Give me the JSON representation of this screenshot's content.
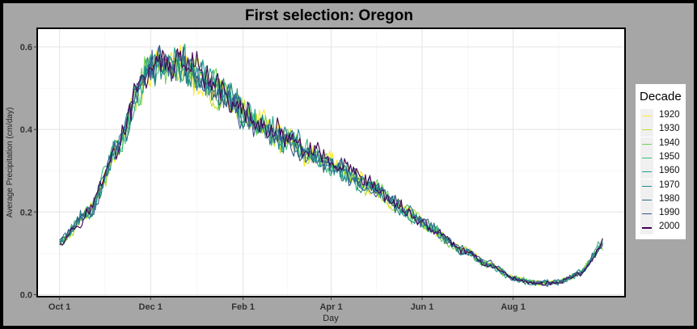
{
  "chart_data": {
    "type": "line",
    "title": "First selection: Oregon",
    "xlabel": "Day",
    "ylabel": "Average Precipitation (cm/day)",
    "x_ticks": [
      "Oct 1",
      "Dec 1",
      "Feb 1",
      "Apr 1",
      "Jun 1",
      "Aug 1"
    ],
    "x_tick_days": [
      1,
      62,
      124,
      183,
      244,
      305
    ],
    "xlim": [
      -14,
      380
    ],
    "y_ticks": [
      "0.0",
      "0.2",
      "0.4",
      "0.6"
    ],
    "y_tick_values": [
      0.0,
      0.2,
      0.4,
      0.6
    ],
    "ylim": [
      -0.005,
      0.645
    ],
    "grid": true,
    "legend_title": "Decade",
    "legend_position": "right",
    "x_unit": "day of water year (Oct 1 = 1)",
    "series": [
      {
        "name": "1920",
        "color": "#FDE725",
        "seed": 11
      },
      {
        "name": "1930",
        "color": "#B8DE29",
        "seed": 23
      },
      {
        "name": "1940",
        "color": "#73D055",
        "seed": 37
      },
      {
        "name": "1950",
        "color": "#3CBB75",
        "seed": 41
      },
      {
        "name": "1960",
        "color": "#20A387",
        "seed": 53
      },
      {
        "name": "1970",
        "color": "#238A8D",
        "seed": 67
      },
      {
        "name": "1980",
        "color": "#2D708E",
        "seed": 71
      },
      {
        "name": "1990",
        "color": "#39568C",
        "seed": 83
      },
      {
        "name": "2000",
        "color": "#440154",
        "seed": 97
      }
    ],
    "trend": {
      "x": [
        1,
        20,
        40,
        55,
        62,
        75,
        90,
        110,
        130,
        150,
        170,
        190,
        210,
        230,
        250,
        270,
        290,
        305,
        320,
        335,
        350,
        365
      ],
      "y": [
        0.13,
        0.2,
        0.36,
        0.5,
        0.55,
        0.56,
        0.54,
        0.49,
        0.42,
        0.38,
        0.34,
        0.3,
        0.26,
        0.21,
        0.16,
        0.11,
        0.07,
        0.04,
        0.027,
        0.03,
        0.05,
        0.12
      ]
    }
  }
}
